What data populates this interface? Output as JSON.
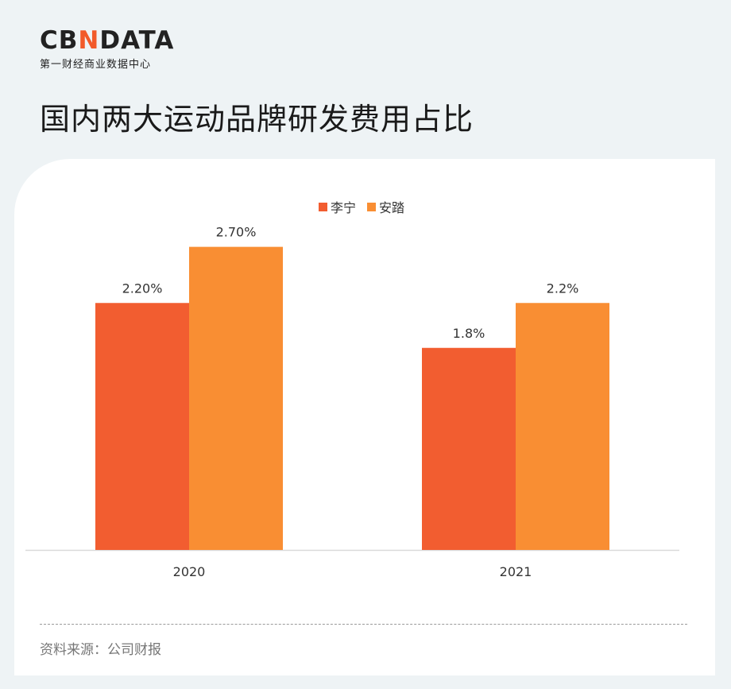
{
  "logo": {
    "main_prefix": "CB",
    "main_accent": "N",
    "main_suffix": "DATA",
    "subtitle": "第一财经商业数据中心"
  },
  "title": "国内两大运动品牌研发费用占比",
  "source": "资料来源：公司财报",
  "colors": {
    "li_ning": "#f25d30",
    "anta": "#f98e33",
    "background": "#eef3f5",
    "card": "#ffffff"
  },
  "chart_data": {
    "type": "bar",
    "categories": [
      "2020",
      "2021"
    ],
    "series": [
      {
        "name": "李宁",
        "values": [
          2.2,
          1.8
        ],
        "labels": [
          "2.20%",
          "1.8%"
        ],
        "color": "#f25d30"
      },
      {
        "name": "安踏",
        "values": [
          2.7,
          2.2
        ],
        "labels": [
          "2.70%",
          "2.2%"
        ],
        "color": "#f98e33"
      }
    ],
    "ylim": [
      0,
      3.2
    ],
    "grid": false,
    "legend": "top-center"
  }
}
